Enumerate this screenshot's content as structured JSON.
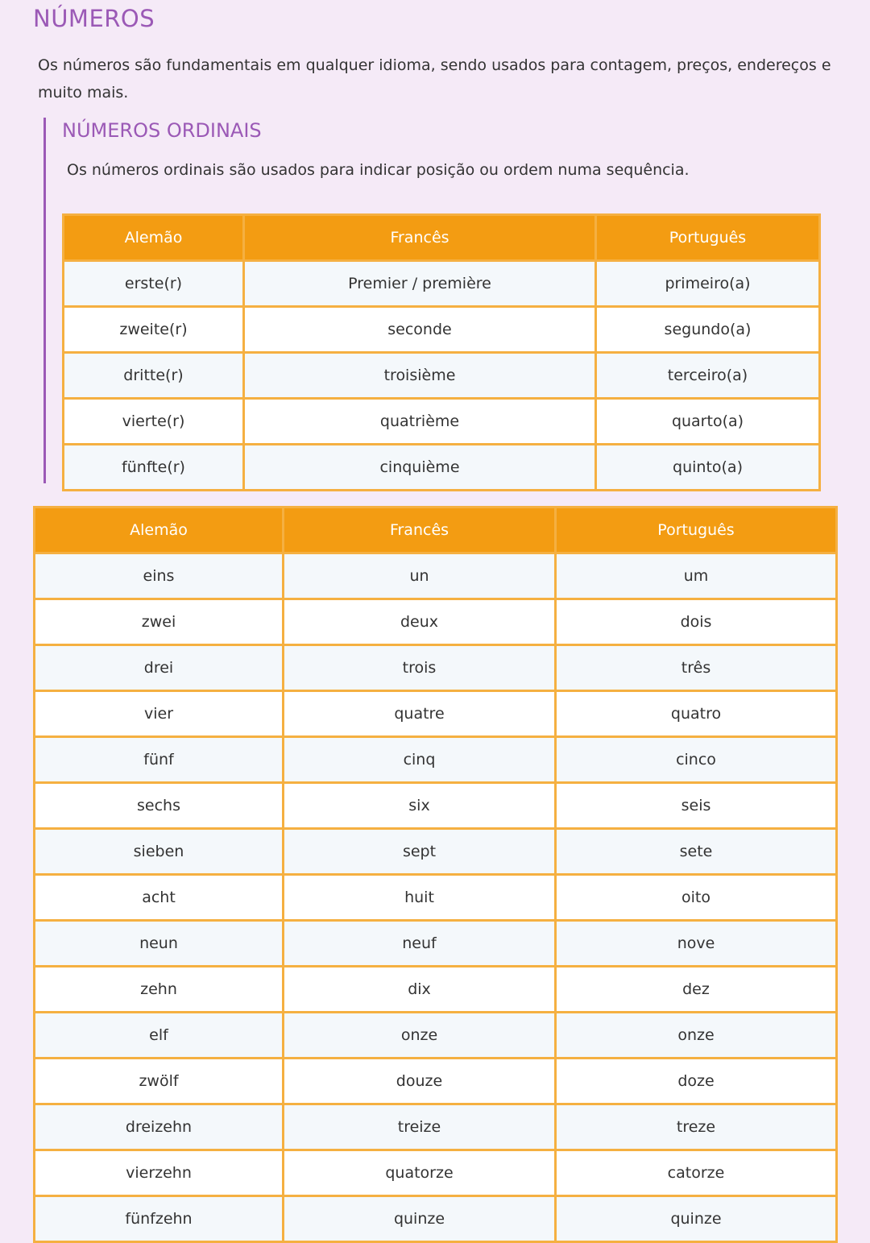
{
  "title": "NÚMEROS",
  "intro": "Os números são fundamentais em qualquer idioma, sendo usados para contagem, preços, endereços e muito mais.",
  "ordinal": {
    "title": "NÚMEROS ORDINAIS",
    "description": "Os números ordinais são usados para indicar posição ou ordem numa sequência.",
    "headers": [
      "Alemão",
      "Francês",
      "Português"
    ],
    "rows": [
      [
        "erste(r)",
        "Premier / première",
        "primeiro(a)"
      ],
      [
        "zweite(r)",
        "seconde",
        "segundo(a)"
      ],
      [
        "dritte(r)",
        "troisième",
        "terceiro(a)"
      ],
      [
        "vierte(r)",
        "quatrième",
        "quarto(a)"
      ],
      [
        "fünfte(r)",
        "cinquième",
        "quinto(a)"
      ]
    ]
  },
  "cardinal": {
    "headers": [
      "Alemão",
      "Francês",
      "Português"
    ],
    "rows": [
      [
        "eins",
        "un",
        "um"
      ],
      [
        "zwei",
        "deux",
        "dois"
      ],
      [
        "drei",
        "trois",
        "três"
      ],
      [
        "vier",
        "quatre",
        "quatro"
      ],
      [
        "fünf",
        "cinq",
        "cinco"
      ],
      [
        "sechs",
        "six",
        "seis"
      ],
      [
        "sieben",
        "sept",
        "sete"
      ],
      [
        "acht",
        "huit",
        "oito"
      ],
      [
        "neun",
        "neuf",
        "nove"
      ],
      [
        "zehn",
        "dix",
        "dez"
      ],
      [
        "elf",
        "onze",
        "onze"
      ],
      [
        "zwölf",
        "douze",
        "doze"
      ],
      [
        "dreizehn",
        "treize",
        "treze"
      ],
      [
        "vierzehn",
        "quatorze",
        "catorze"
      ],
      [
        "fünfzehn",
        "quinze",
        "quinze"
      ]
    ]
  },
  "colors": {
    "accent": "#9b59b6",
    "header": "#f39c12",
    "border": "#f5b041",
    "background": "#f5eaf7"
  }
}
